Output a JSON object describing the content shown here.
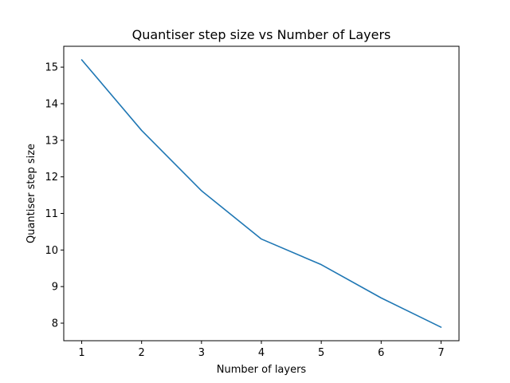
{
  "chart_data": {
    "type": "line",
    "title": "Quantiser step size vs Number of Layers",
    "xlabel": "Number of layers",
    "ylabel": "Quantiser step size",
    "x": [
      1,
      2,
      3,
      4,
      5,
      6,
      7
    ],
    "series": [
      {
        "values": [
          15.2,
          13.27,
          11.62,
          10.3,
          9.6,
          8.69,
          7.89
        ]
      }
    ],
    "xlim": [
      0.7,
      7.3
    ],
    "ylim": [
      7.52,
      15.57
    ],
    "xticks": [
      1,
      2,
      3,
      4,
      5,
      6,
      7
    ],
    "yticks": [
      8,
      9,
      10,
      11,
      12,
      13,
      14,
      15
    ],
    "grid": false,
    "line_color": "#1f77b4"
  }
}
